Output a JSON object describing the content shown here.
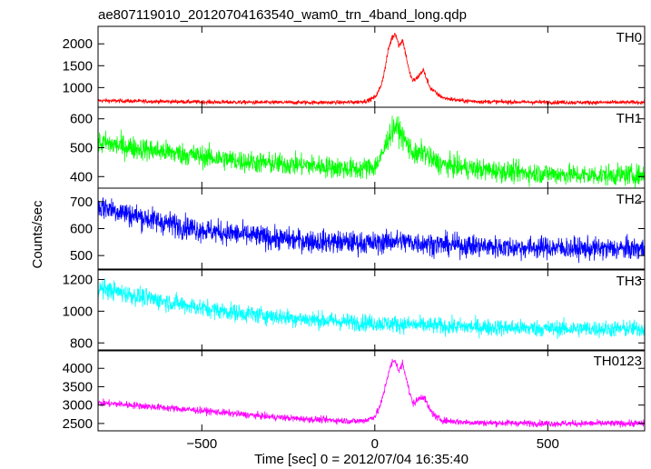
{
  "chart_data": {
    "type": "line",
    "title": "ae807119010_20120704163540_wam0_trn_4band_long.qdp",
    "xlabel": "Time [sec] 0 = 2012/07/04 16:35:40",
    "ylabel": "Counts/sec",
    "xlim": [
      -800,
      780
    ],
    "x_ticks": [
      -500,
      0,
      500
    ],
    "x_tick_labels": [
      "−500",
      "0",
      "500"
    ],
    "grid": false,
    "panels": [
      {
        "name": "TH0",
        "color": "#ff0000",
        "ylim": [
          550,
          2400
        ],
        "y_ticks": [
          1000,
          1500,
          2000
        ],
        "x": [
          -780,
          -700,
          -600,
          -500,
          -400,
          -300,
          -200,
          -100,
          -50,
          -20,
          0,
          10,
          20,
          30,
          40,
          50,
          60,
          70,
          80,
          90,
          100,
          110,
          120,
          130,
          140,
          150,
          160,
          180,
          200,
          250,
          300,
          400,
          500,
          600,
          700,
          780
        ],
        "y": [
          700,
          690,
          680,
          670,
          665,
          660,
          660,
          660,
          670,
          700,
          780,
          900,
          1100,
          1450,
          1900,
          2150,
          2250,
          1950,
          2100,
          1750,
          1350,
          1150,
          1200,
          1300,
          1400,
          1200,
          1000,
          850,
          760,
          700,
          680,
          670,
          665,
          660,
          660,
          665
        ]
      },
      {
        "name": "TH1",
        "color": "#00ff00",
        "ylim": [
          360,
          640
        ],
        "y_ticks": [
          400,
          500,
          600
        ],
        "x": [
          -780,
          -700,
          -600,
          -500,
          -400,
          -300,
          -200,
          -100,
          -50,
          0,
          20,
          40,
          60,
          80,
          100,
          120,
          140,
          160,
          200,
          300,
          400,
          500,
          600,
          700,
          780
        ],
        "y": [
          515,
          500,
          485,
          470,
          455,
          445,
          440,
          430,
          425,
          435,
          470,
          540,
          575,
          540,
          500,
          470,
          490,
          460,
          440,
          425,
          415,
          410,
          405,
          405,
          405
        ]
      },
      {
        "name": "TH2",
        "color": "#0000ff",
        "ylim": [
          450,
          750
        ],
        "y_ticks": [
          500,
          600,
          700
        ],
        "x": [
          -780,
          -700,
          -600,
          -500,
          -400,
          -300,
          -200,
          -100,
          0,
          50,
          100,
          200,
          300,
          400,
          500,
          600,
          700,
          780
        ],
        "y": [
          680,
          650,
          620,
          595,
          580,
          565,
          555,
          550,
          545,
          555,
          550,
          540,
          535,
          530,
          530,
          525,
          525,
          525
        ]
      },
      {
        "name": "TH3",
        "color": "#00ffff",
        "ylim": [
          750,
          1260
        ],
        "y_ticks": [
          800,
          1000,
          1200
        ],
        "x": [
          -780,
          -700,
          -600,
          -500,
          -400,
          -300,
          -200,
          -100,
          0,
          100,
          200,
          300,
          400,
          500,
          600,
          700,
          780
        ],
        "y": [
          1140,
          1100,
          1060,
          1020,
          990,
          970,
          950,
          935,
          925,
          915,
          905,
          900,
          895,
          890,
          890,
          888,
          890
        ]
      },
      {
        "name": "TH0123",
        "color": "#ff00ff",
        "ylim": [
          2300,
          4500
        ],
        "y_ticks": [
          2500,
          3000,
          3500,
          4000
        ],
        "x": [
          -780,
          -700,
          -600,
          -500,
          -400,
          -300,
          -200,
          -100,
          -50,
          -20,
          0,
          10,
          20,
          30,
          40,
          50,
          60,
          70,
          80,
          90,
          100,
          110,
          120,
          130,
          140,
          150,
          160,
          180,
          200,
          250,
          300,
          400,
          500,
          600,
          700,
          780
        ],
        "y": [
          3050,
          3000,
          2920,
          2850,
          2760,
          2680,
          2620,
          2580,
          2560,
          2600,
          2700,
          2850,
          3100,
          3500,
          3900,
          4150,
          4200,
          3900,
          4150,
          3800,
          3350,
          3050,
          3100,
          3200,
          3250,
          3050,
          2850,
          2650,
          2580,
          2540,
          2520,
          2510,
          2500,
          2500,
          2500,
          2500
        ]
      }
    ]
  }
}
